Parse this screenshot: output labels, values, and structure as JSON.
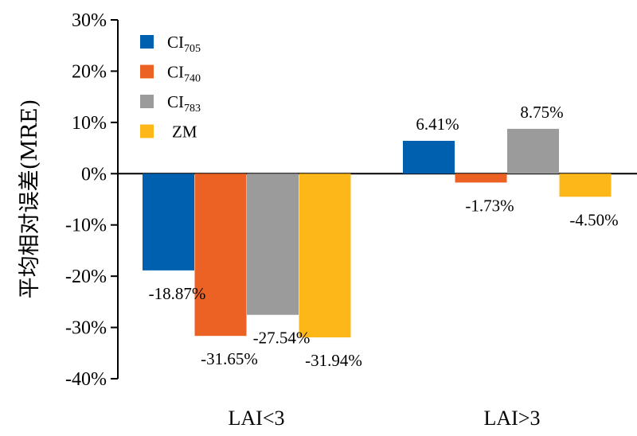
{
  "chart_data": {
    "type": "bar",
    "title": "",
    "xlabel": "",
    "ylabel": "平均相对误差(MRE)",
    "categories": [
      "LAI<3",
      "LAI>3"
    ],
    "ylim": [
      -40,
      30
    ],
    "yticks": [
      30,
      20,
      10,
      0,
      -10,
      -20,
      -30,
      -40
    ],
    "ytick_labels": [
      "30%",
      "20%",
      "10%",
      "0%",
      "-10%",
      "-20%",
      "-30%",
      "-40%"
    ],
    "grid": false,
    "legend_position": "top-left",
    "series": [
      {
        "name": "CI",
        "name_sub": "705",
        "color": "#0060b0",
        "values": [
          -18.87,
          6.41
        ],
        "labels": [
          "-18.87%",
          "6.41%"
        ]
      },
      {
        "name": "CI",
        "name_sub": "740",
        "color": "#ec6225",
        "values": [
          -31.65,
          -1.73
        ],
        "labels": [
          "-31.65%",
          "-1.73%"
        ]
      },
      {
        "name": "CI",
        "name_sub": "783",
        "color": "#9b9b9b",
        "values": [
          -27.54,
          8.75
        ],
        "labels": [
          "-27.54%",
          "8.75%"
        ]
      },
      {
        "name": "ZM",
        "name_sub": "",
        "color": "#fdb718",
        "values": [
          -31.94,
          -4.5
        ],
        "labels": [
          "-31.94%",
          "-4.50%"
        ]
      }
    ]
  }
}
